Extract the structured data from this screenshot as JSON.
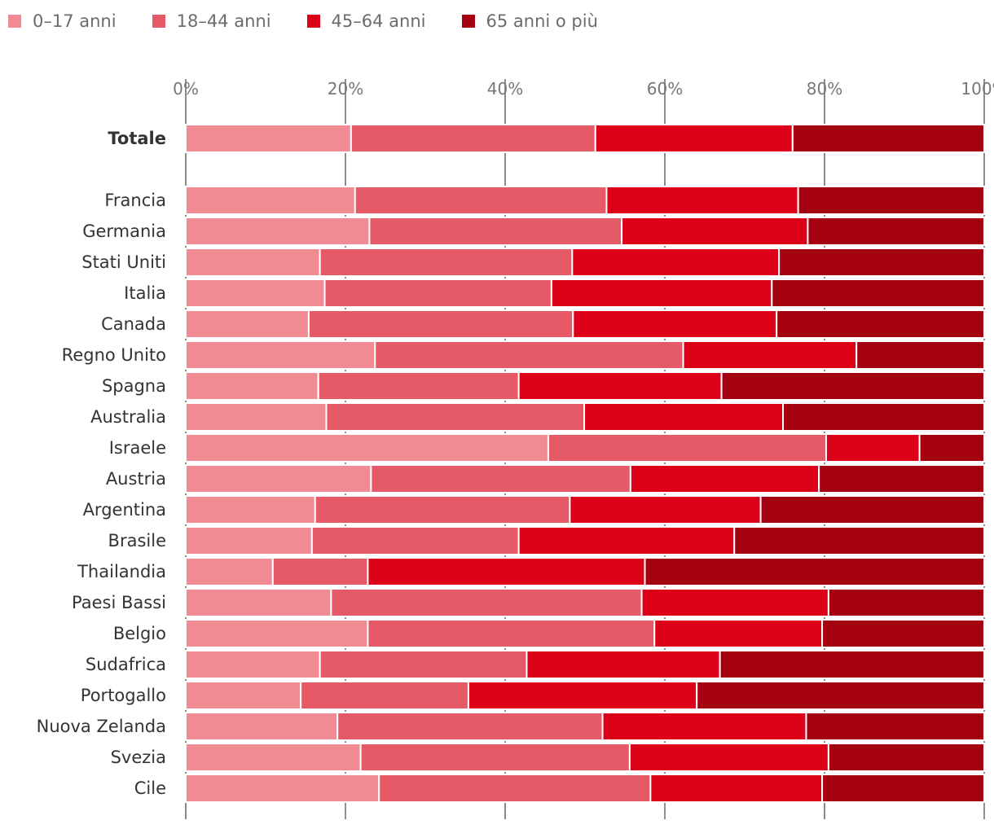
{
  "chart_data": {
    "type": "bar",
    "orientation": "horizontal",
    "stacked": true,
    "xlim": [
      0,
      100
    ],
    "x_ticks": [
      "0%",
      "20%",
      "40%",
      "60%",
      "80%",
      "100%"
    ],
    "x_tick_values": [
      0,
      20,
      40,
      60,
      80,
      100
    ],
    "grid": true,
    "legend_position": "top-left",
    "colors": [
      "#f08a93",
      "#e65967",
      "#dc0018",
      "#a50010"
    ],
    "series_names": [
      "0–17 anni",
      "18–44 anni",
      "45–64 anni",
      "65 anni o più"
    ],
    "categories": [
      "Totale",
      "Francia",
      "Germania",
      "Stati Uniti",
      "Italia",
      "Canada",
      "Regno Unito",
      "Spagna",
      "Australia",
      "Israele",
      "Austria",
      "Argentina",
      "Brasile",
      "Thailandia",
      "Paesi Bassi",
      "Belgio",
      "Sudafrica",
      "Portogallo",
      "Nuova Zelanda",
      "Svezia",
      "Cile"
    ],
    "emphasized_category": "Totale",
    "series": [
      {
        "name": "0–17 anni",
        "values": [
          20.7,
          21.2,
          23.0,
          16.8,
          17.4,
          15.4,
          23.7,
          16.6,
          17.6,
          45.4,
          23.2,
          16.2,
          15.8,
          10.9,
          18.2,
          22.8,
          16.8,
          14.4,
          19.0,
          21.9,
          24.2
        ]
      },
      {
        "name": "18–44 anni",
        "values": [
          30.6,
          31.5,
          31.6,
          31.6,
          28.4,
          33.1,
          38.6,
          25.1,
          32.3,
          34.8,
          32.5,
          31.9,
          25.9,
          11.9,
          38.9,
          35.9,
          25.9,
          21.0,
          33.2,
          33.7,
          34.0
        ]
      },
      {
        "name": "45–64 anni",
        "values": [
          24.7,
          24.0,
          23.3,
          25.9,
          27.6,
          25.5,
          21.7,
          25.4,
          24.9,
          11.7,
          23.6,
          23.9,
          27.0,
          34.7,
          23.4,
          21.0,
          24.2,
          28.6,
          25.5,
          24.9,
          21.5
        ]
      },
      {
        "name": "65 anni o più",
        "values": [
          24.0,
          23.3,
          22.1,
          25.7,
          26.6,
          26.0,
          16.0,
          32.9,
          25.2,
          8.1,
          20.7,
          28.0,
          31.3,
          42.5,
          19.5,
          20.3,
          33.1,
          36.0,
          22.3,
          19.5,
          20.3
        ]
      }
    ]
  }
}
